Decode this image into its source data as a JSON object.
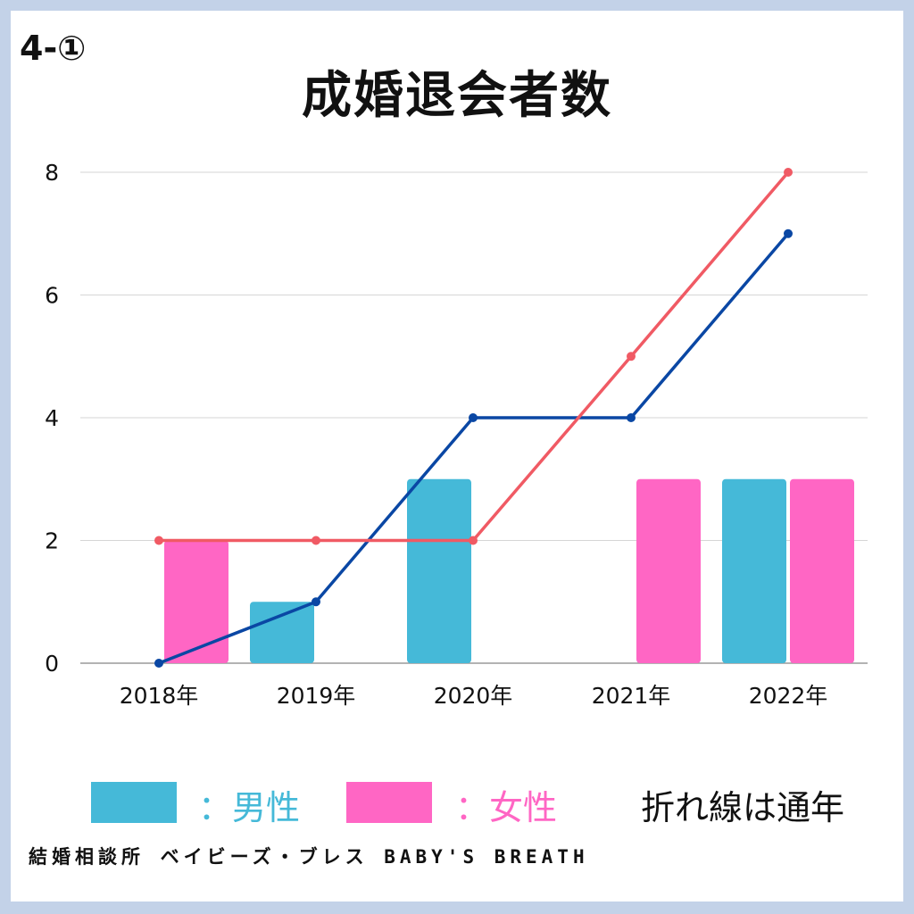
{
  "badge": "4-①",
  "legend": {
    "male_label": "：男性",
    "female_label": "：女性",
    "line_note": "折れ線は通年"
  },
  "footer": "結婚相談所 ベイビーズ・ブレス BABY'S BREATH",
  "colors": {
    "male_bar": "#45b9d8",
    "female_bar": "#ff66c4",
    "male_line": "#0a47a4",
    "female_line": "#f05a64",
    "grid": "#d6d6d6",
    "background": "#c3d2e8"
  },
  "chart_data": {
    "type": "bar",
    "title": "成婚退会者数",
    "categories": [
      "2018年",
      "2019年",
      "2020年",
      "2021年",
      "2022年"
    ],
    "ylim": [
      0,
      8
    ],
    "yticks": [
      0,
      2,
      4,
      6,
      8
    ],
    "grid": true,
    "bar_series": [
      {
        "name": "男性",
        "values": [
          0,
          1,
          3,
          0,
          3
        ]
      },
      {
        "name": "女性",
        "values": [
          2,
          0,
          0,
          3,
          3
        ]
      }
    ],
    "line_series": [
      {
        "values": [
          0,
          1,
          4,
          4,
          7
        ]
      },
      {
        "values": [
          2,
          2,
          2,
          5,
          8
        ]
      }
    ],
    "legend_position": "bottom"
  }
}
